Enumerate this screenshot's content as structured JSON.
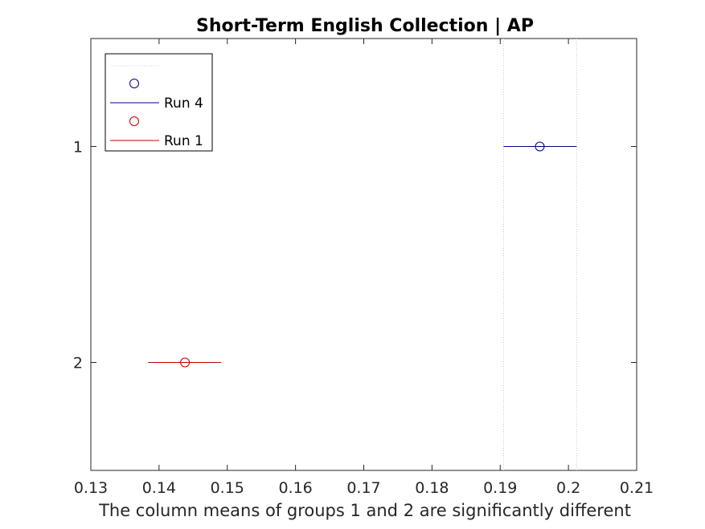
{
  "chart_data": {
    "type": "errorbar",
    "title": "Short-Term English Collection | AP",
    "xlabel": "The column means of groups 1 and 2 are significantly different",
    "ylabel": "",
    "xlim": [
      0.13,
      0.21
    ],
    "ylim": [
      0.5,
      2.5
    ],
    "x_ticks": [
      "0.13",
      "0.14",
      "0.15",
      "0.16",
      "0.17",
      "0.18",
      "0.19",
      "0.2",
      "0.21"
    ],
    "y_ticks": [
      "1",
      "2"
    ],
    "grid": false,
    "reference_lines_x": [
      0.1905,
      0.2012
    ],
    "legend_position": "top-left",
    "series": [
      {
        "name": "Run 4",
        "group": 1,
        "mean": 0.1958,
        "lower": 0.1905,
        "upper": 0.2012,
        "color": "#00007f"
      },
      {
        "name": "Run 1",
        "group": 2,
        "mean": 0.1438,
        "lower": 0.1384,
        "upper": 0.1491,
        "color": "#bf0000"
      }
    ]
  }
}
